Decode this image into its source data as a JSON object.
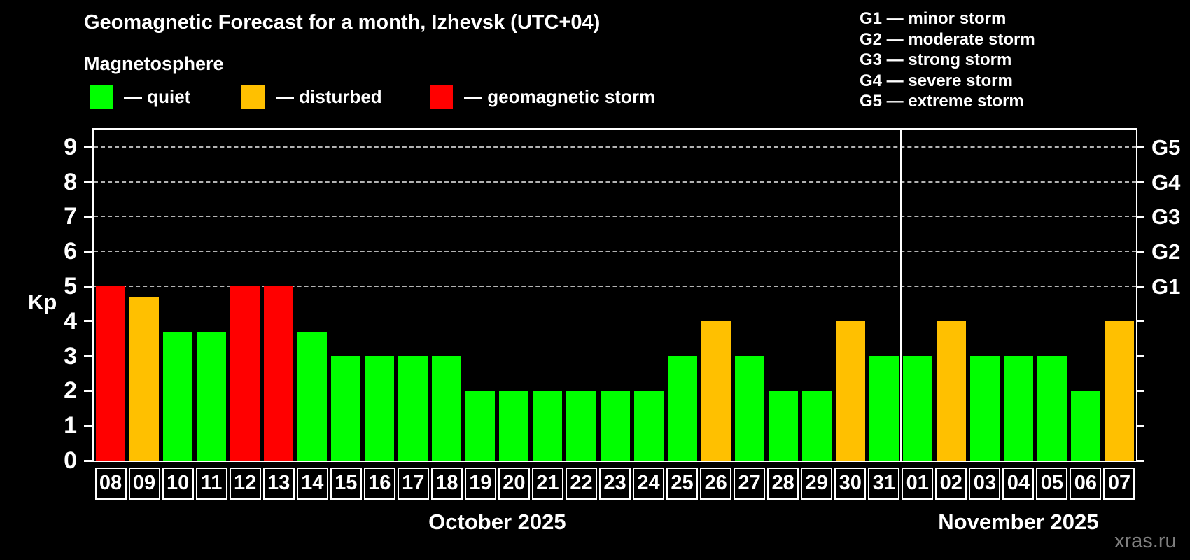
{
  "title": "Geomagnetic Forecast for a month, Izhevsk (UTC+04)",
  "subtitle": "Magnetosphere",
  "kp_legend": [
    {
      "key": "quiet",
      "label": "— quiet",
      "color": "#00ff00"
    },
    {
      "key": "disturbed",
      "label": "— disturbed",
      "color": "#ffc000"
    },
    {
      "key": "storm",
      "label": "— geomagnetic storm",
      "color": "#ff0000"
    }
  ],
  "g_scale_legend": [
    "G1 — minor storm",
    "G2 — moderate storm",
    "G3 — strong storm",
    "G4 — severe storm",
    "G5 — extreme storm"
  ],
  "watermark": "xras.ru",
  "chart_data": {
    "type": "bar",
    "ylabel": "Kp",
    "ylim": [
      0,
      9.5
    ],
    "yticks": [
      0,
      1,
      2,
      3,
      4,
      5,
      6,
      7,
      8,
      9
    ],
    "gridlines": [
      5,
      6,
      7,
      8,
      9
    ],
    "grid_style": "dashed",
    "legend_position": "top",
    "right_axis": [
      {
        "value": 5,
        "label": "G1"
      },
      {
        "value": 6,
        "label": "G2"
      },
      {
        "value": 7,
        "label": "G3"
      },
      {
        "value": 8,
        "label": "G4"
      },
      {
        "value": 9,
        "label": "G5"
      }
    ],
    "status_colors": {
      "quiet": "#00ff00",
      "disturbed": "#ffc000",
      "storm": "#ff0000"
    },
    "months": [
      {
        "label": "October 2025",
        "days": [
          {
            "date": "08",
            "kp": 5,
            "status": "storm"
          },
          {
            "date": "09",
            "kp": 4.67,
            "status": "disturbed"
          },
          {
            "date": "10",
            "kp": 3.67,
            "status": "quiet"
          },
          {
            "date": "11",
            "kp": 3.67,
            "status": "quiet"
          },
          {
            "date": "12",
            "kp": 5,
            "status": "storm"
          },
          {
            "date": "13",
            "kp": 5,
            "status": "storm"
          },
          {
            "date": "14",
            "kp": 3.67,
            "status": "quiet"
          },
          {
            "date": "15",
            "kp": 3,
            "status": "quiet"
          },
          {
            "date": "16",
            "kp": 3,
            "status": "quiet"
          },
          {
            "date": "17",
            "kp": 3,
            "status": "quiet"
          },
          {
            "date": "18",
            "kp": 3,
            "status": "quiet"
          },
          {
            "date": "19",
            "kp": 2,
            "status": "quiet"
          },
          {
            "date": "20",
            "kp": 2,
            "status": "quiet"
          },
          {
            "date": "21",
            "kp": 2,
            "status": "quiet"
          },
          {
            "date": "22",
            "kp": 2,
            "status": "quiet"
          },
          {
            "date": "23",
            "kp": 2,
            "status": "quiet"
          },
          {
            "date": "24",
            "kp": 2,
            "status": "quiet"
          },
          {
            "date": "25",
            "kp": 3,
            "status": "quiet"
          },
          {
            "date": "26",
            "kp": 4,
            "status": "disturbed"
          },
          {
            "date": "27",
            "kp": 3,
            "status": "quiet"
          },
          {
            "date": "28",
            "kp": 2,
            "status": "quiet"
          },
          {
            "date": "29",
            "kp": 2,
            "status": "quiet"
          },
          {
            "date": "30",
            "kp": 4,
            "status": "disturbed"
          },
          {
            "date": "31",
            "kp": 3,
            "status": "quiet"
          }
        ]
      },
      {
        "label": "November 2025",
        "days": [
          {
            "date": "01",
            "kp": 3,
            "status": "quiet"
          },
          {
            "date": "02",
            "kp": 4,
            "status": "disturbed"
          },
          {
            "date": "03",
            "kp": 3,
            "status": "quiet"
          },
          {
            "date": "04",
            "kp": 3,
            "status": "quiet"
          },
          {
            "date": "05",
            "kp": 3,
            "status": "quiet"
          },
          {
            "date": "06",
            "kp": 2,
            "status": "quiet"
          },
          {
            "date": "07",
            "kp": 4,
            "status": "disturbed"
          }
        ]
      }
    ]
  }
}
